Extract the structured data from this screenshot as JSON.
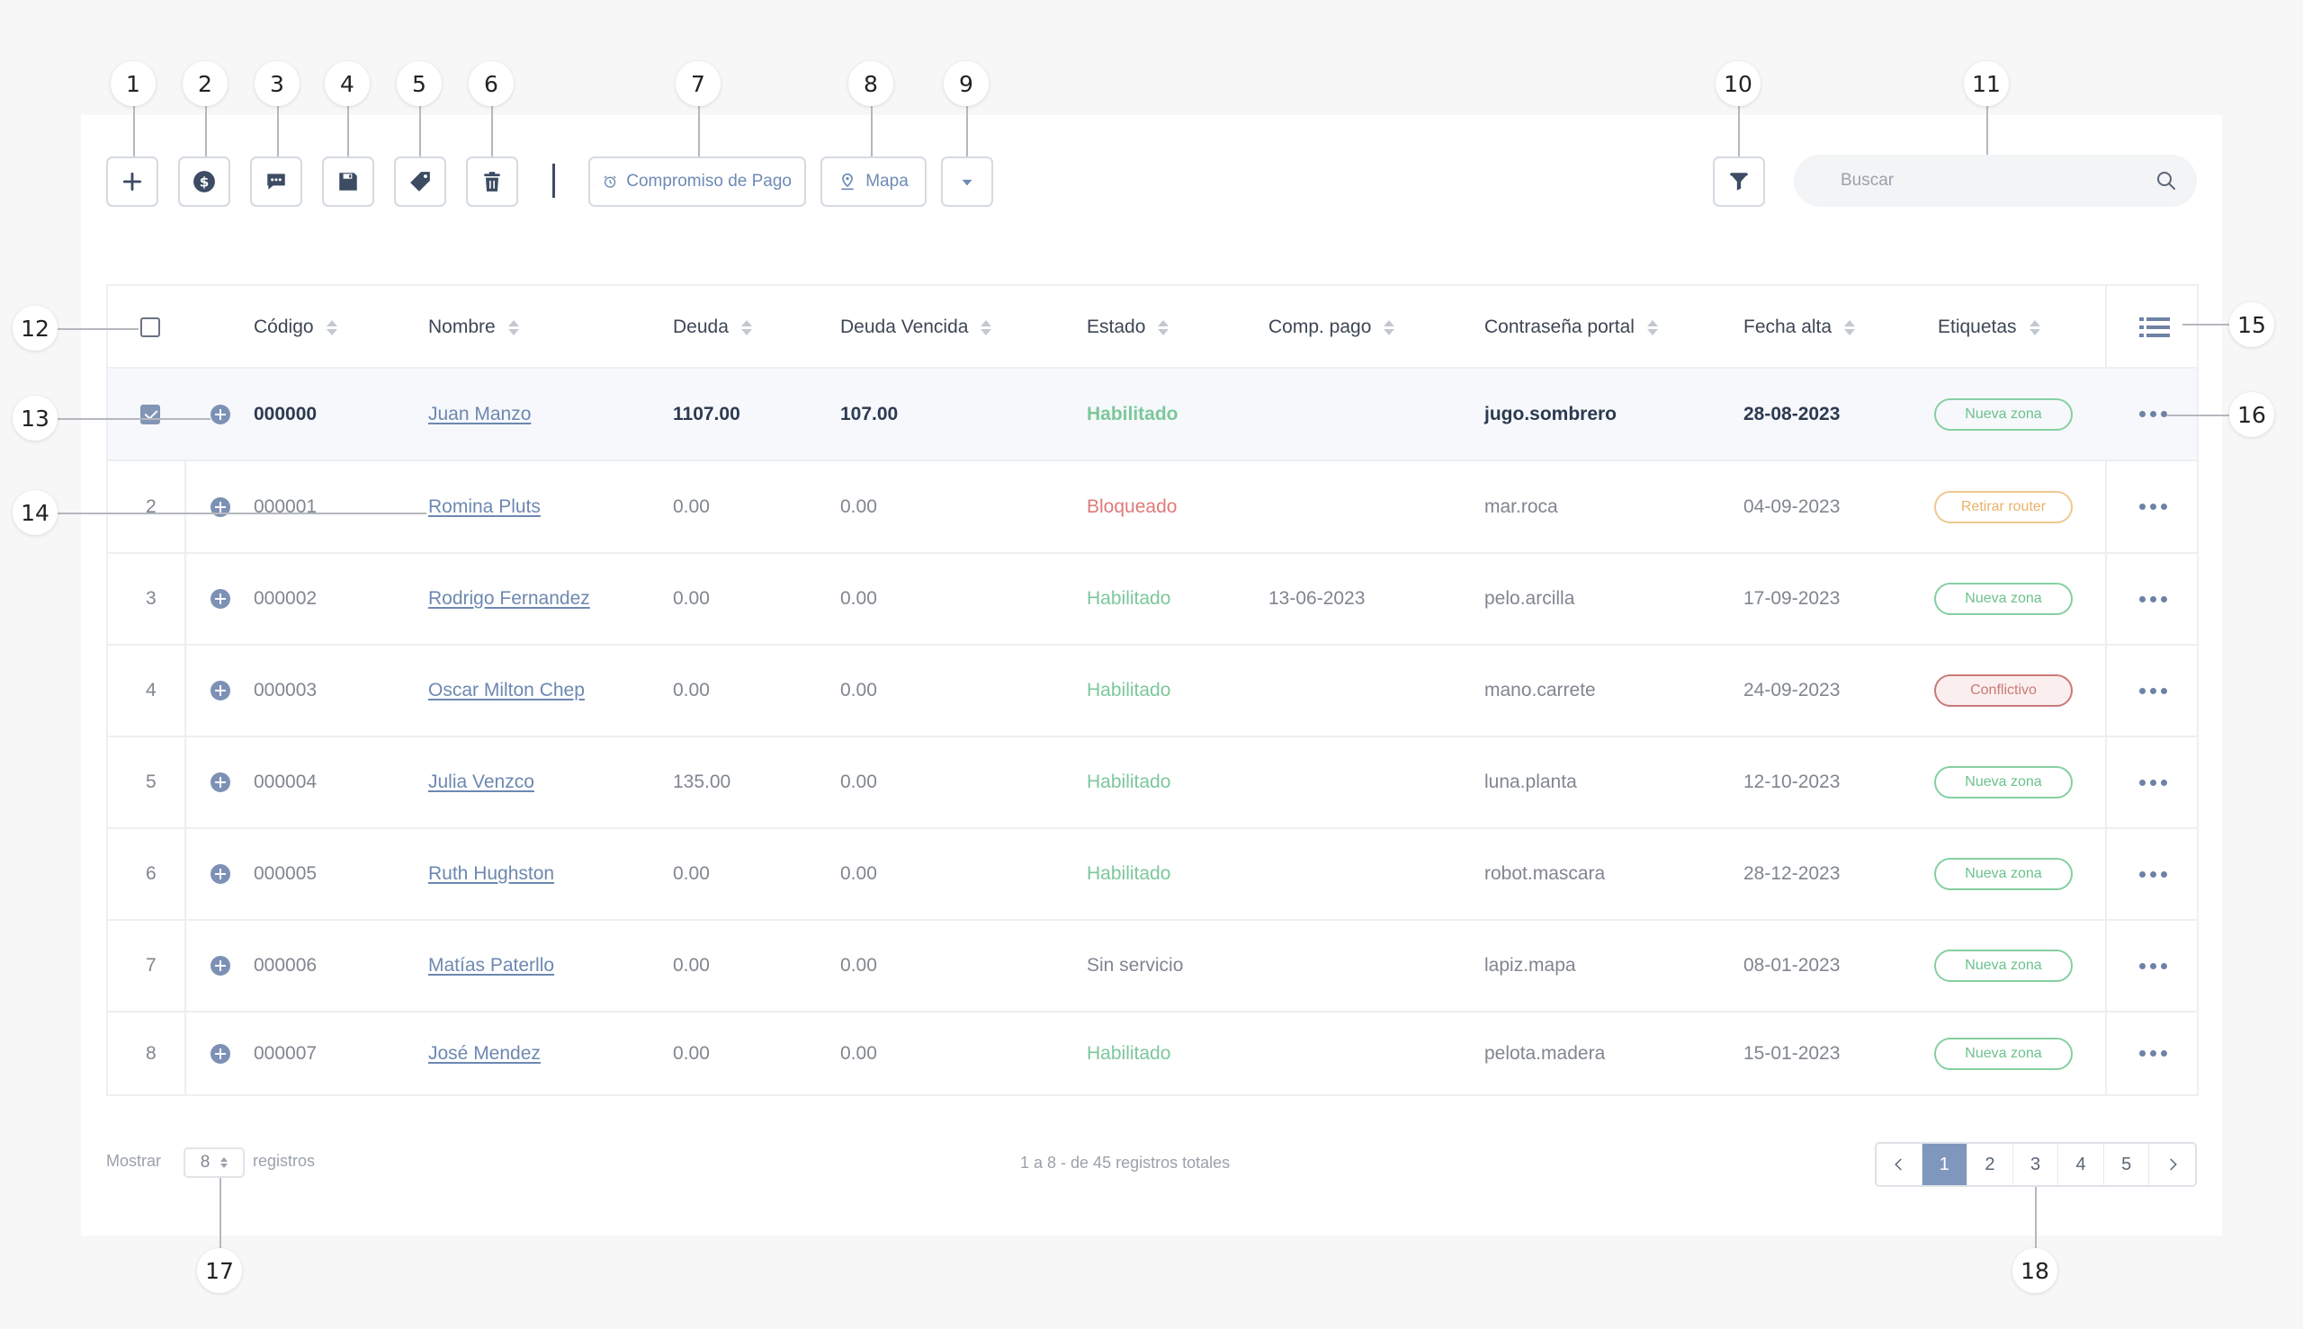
{
  "callouts": [
    "1",
    "2",
    "3",
    "4",
    "5",
    "6",
    "7",
    "8",
    "9",
    "10",
    "11",
    "12",
    "13",
    "14",
    "15",
    "16",
    "17",
    "18"
  ],
  "toolbar": {
    "icons": [
      "plus-icon",
      "dollar-icon",
      "message-icon",
      "save-icon",
      "tag-icon",
      "trash-icon"
    ],
    "payment_commitment_label": "Compromiso de Pago",
    "map_label": "Mapa"
  },
  "search": {
    "placeholder": "Buscar"
  },
  "table": {
    "headers": {
      "code": "Código",
      "name": "Nombre",
      "debt": "Deuda",
      "overdue_debt": "Deuda Vencida",
      "status": "Estado",
      "payment_commitment": "Comp. pago",
      "portal_password": "Contraseña portal",
      "signup_date": "Fecha alta",
      "tags": "Etiquetas"
    },
    "rows": [
      {
        "index": "",
        "code": "000000",
        "name": "Juan Manzo",
        "debt": "1107.00",
        "overdue": "107.00",
        "status": "Habilitado",
        "commit": "",
        "password": "jugo.sombrero",
        "date": "28-08-2023",
        "tag": "Nueva zona"
      },
      {
        "index": "2",
        "code": "000001",
        "name": "Romina Pluts",
        "debt": "0.00",
        "overdue": "0.00",
        "status": "Bloqueado",
        "commit": "",
        "password": "mar.roca",
        "date": "04-09-2023",
        "tag": "Retirar router"
      },
      {
        "index": "3",
        "code": "000002",
        "name": "Rodrigo Fernandez",
        "debt": "0.00",
        "overdue": "0.00",
        "status": "Habilitado",
        "commit": "13-06-2023",
        "password": "pelo.arcilla",
        "date": "17-09-2023",
        "tag": "Nueva zona"
      },
      {
        "index": "4",
        "code": "000003",
        "name": "Oscar Milton Chep",
        "debt": "0.00",
        "overdue": "0.00",
        "status": "Habilitado",
        "commit": "",
        "password": "mano.carrete",
        "date": "24-09-2023",
        "tag": "Conflictivo"
      },
      {
        "index": "5",
        "code": "000004",
        "name": "Julia Venzco",
        "debt": "135.00",
        "overdue": "0.00",
        "status": "Habilitado",
        "commit": "",
        "password": "luna.planta",
        "date": "12-10-2023",
        "tag": "Nueva zona"
      },
      {
        "index": "6",
        "code": "000005",
        "name": "Ruth Hughston",
        "debt": "0.00",
        "overdue": "0.00",
        "status": "Habilitado",
        "commit": "",
        "password": "robot.mascara",
        "date": "28-12-2023",
        "tag": "Nueva zona"
      },
      {
        "index": "7",
        "code": "000006",
        "name": "Matías Paterllo",
        "debt": "0.00",
        "overdue": "0.00",
        "status": "Sin servicio",
        "commit": "",
        "password": "lapiz.mapa",
        "date": "08-01-2023",
        "tag": "Nueva zona"
      },
      {
        "index": "8",
        "code": "000007",
        "name": "José Mendez",
        "debt": "0.00",
        "overdue": "0.00",
        "status": "Habilitado",
        "commit": "",
        "password": "pelota.madera",
        "date": "15-01-2023",
        "tag": "Nueva zona"
      }
    ]
  },
  "footer": {
    "show_label": "Mostrar",
    "page_size": "8",
    "records_label": "registros",
    "summary": "1 a 8 - de 45 registros totales",
    "pages": [
      "1",
      "2",
      "3",
      "4",
      "5"
    ],
    "active_page": "1"
  },
  "colors": {
    "accent": "#8097bd",
    "link": "#6d88b1",
    "enabled": "#7cc79a",
    "blocked": "#df7a7a",
    "icon": "#3d4b63"
  }
}
